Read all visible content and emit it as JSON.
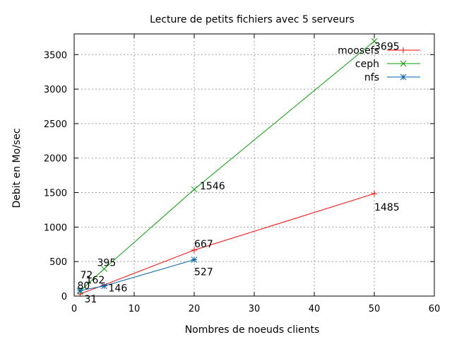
{
  "chart_data": {
    "type": "line",
    "title": "Lecture de petits fichiers avec 5 serveurs",
    "xlabel": "Nombres de noeuds clients",
    "ylabel": "Debit en Mo/sec",
    "xlim": [
      0,
      60
    ],
    "ylim": [
      0,
      3800
    ],
    "xticks": [
      0,
      10,
      20,
      30,
      40,
      50,
      60
    ],
    "yticks": [
      0,
      500,
      1000,
      1500,
      2000,
      2500,
      3000,
      3500
    ],
    "grid": true,
    "legend_position": "top-right",
    "series": [
      {
        "name": "moosefs",
        "color": "#ff0000",
        "marker": "plus",
        "points": [
          {
            "x": 1,
            "y": 31,
            "label": "31"
          },
          {
            "x": 5,
            "y": 162,
            "label": "162"
          },
          {
            "x": 20,
            "y": 667,
            "label": "667"
          },
          {
            "x": 50,
            "y": 1485,
            "label": "1485"
          }
        ]
      },
      {
        "name": "ceph",
        "color": "#00a000",
        "marker": "cross",
        "points": [
          {
            "x": 1,
            "y": 72,
            "label": "72"
          },
          {
            "x": 5,
            "y": 395,
            "label": "395"
          },
          {
            "x": 20,
            "y": 1546,
            "label": "1546"
          },
          {
            "x": 50,
            "y": 3695,
            "label": "3695"
          }
        ]
      },
      {
        "name": "nfs",
        "color": "#0060ad",
        "marker": "star",
        "points": [
          {
            "x": 1,
            "y": 80,
            "label": "80"
          },
          {
            "x": 5,
            "y": 146,
            "label": "146"
          },
          {
            "x": 20,
            "y": 527,
            "label": "527"
          }
        ]
      }
    ]
  }
}
